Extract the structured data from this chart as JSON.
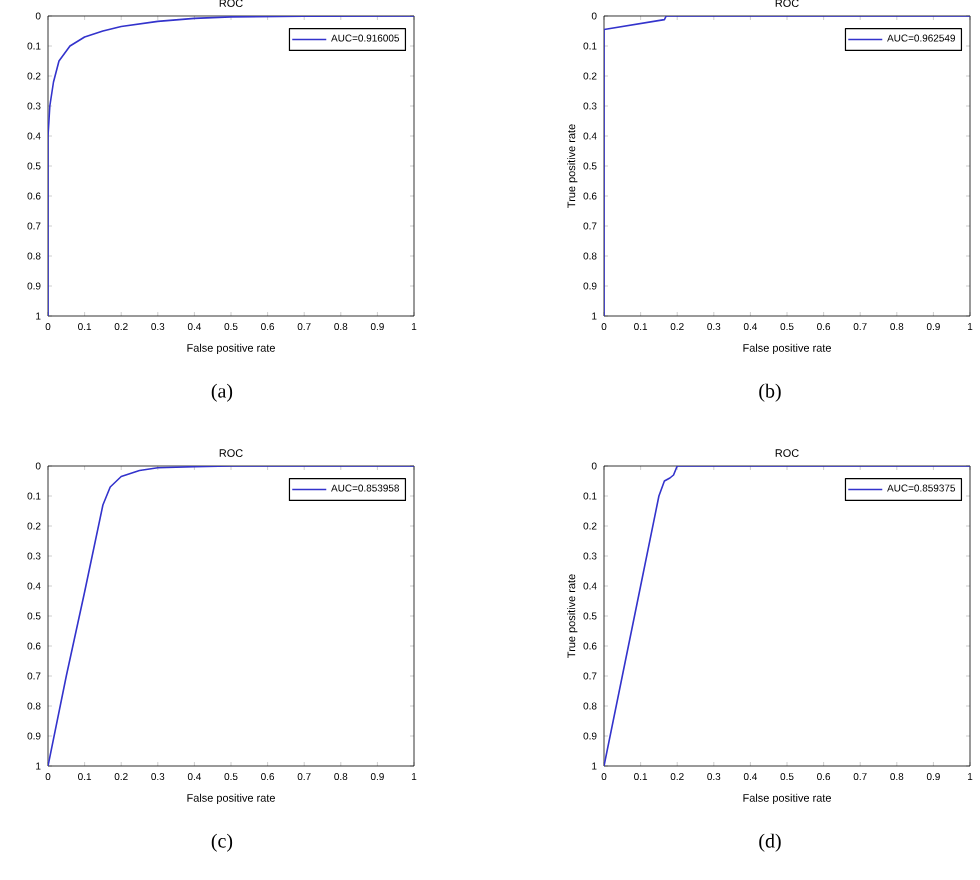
{
  "chart_data": [
    {
      "type": "line",
      "title": "ROC",
      "xlabel": "False positive rate",
      "annotations": [
        "(a)"
      ],
      "legend": "top right",
      "grid": false,
      "marker": "none",
      "line_style": "solid",
      "xlim": [
        0,
        1
      ],
      "ylim": [
        1,
        0
      ],
      "xticks": [
        0,
        0.1,
        0.2,
        0.3,
        0.4,
        0.5,
        0.6,
        0.7,
        0.8,
        0.9,
        1
      ],
      "yticks": [
        0,
        0.1,
        0.2,
        0.3,
        0.4,
        0.5,
        0.6,
        0.7,
        0.8,
        0.9,
        1
      ],
      "x": [
        0,
        0,
        0.005,
        0.015,
        0.03,
        0.06,
        0.1,
        0.15,
        0.2,
        0.3,
        0.4,
        0.5,
        0.7,
        1
      ],
      "series": [
        {
          "name": "AUC=0.916005",
          "color": "#3333cc",
          "values": [
            1,
            0.4,
            0.3,
            0.22,
            0.15,
            0.1,
            0.07,
            0.05,
            0.035,
            0.018,
            0.008,
            0.003,
            0.001,
            0
          ]
        }
      ]
    },
    {
      "type": "line",
      "title": "ROC",
      "xlabel": "False positive rate",
      "ylabel": "True positive rate",
      "annotations": [
        "(b)"
      ],
      "legend": "top right",
      "grid": false,
      "marker": "none",
      "line_style": "solid",
      "xlim": [
        0,
        1
      ],
      "ylim": [
        1,
        0
      ],
      "xticks": [
        0,
        0.1,
        0.2,
        0.3,
        0.4,
        0.5,
        0.6,
        0.7,
        0.8,
        0.9,
        1
      ],
      "yticks": [
        0,
        0.1,
        0.2,
        0.3,
        0.4,
        0.5,
        0.6,
        0.7,
        0.8,
        0.9,
        1
      ],
      "x": [
        0,
        0,
        0.165,
        0.17,
        1
      ],
      "series": [
        {
          "name": "AUC=0.962549",
          "color": "#3333cc",
          "values": [
            1,
            0.045,
            0.012,
            0,
            0
          ]
        }
      ]
    },
    {
      "type": "line",
      "title": "ROC",
      "xlabel": "False positive rate",
      "annotations": [
        "(c)"
      ],
      "legend": "top right",
      "grid": false,
      "marker": "none",
      "line_style": "solid",
      "xlim": [
        0,
        1
      ],
      "ylim": [
        1,
        0
      ],
      "xticks": [
        0,
        0.1,
        0.2,
        0.3,
        0.4,
        0.5,
        0.6,
        0.7,
        0.8,
        0.9,
        1
      ],
      "yticks": [
        0,
        0.1,
        0.2,
        0.3,
        0.4,
        0.5,
        0.6,
        0.7,
        0.8,
        0.9,
        1
      ],
      "x": [
        0,
        0.05,
        0.1,
        0.15,
        0.17,
        0.2,
        0.25,
        0.3,
        0.4,
        0.5,
        1
      ],
      "series": [
        {
          "name": "AUC=0.853958",
          "color": "#3333cc",
          "values": [
            1,
            0.7,
            0.42,
            0.13,
            0.07,
            0.035,
            0.015,
            0.006,
            0.002,
            0,
            0
          ]
        }
      ]
    },
    {
      "type": "line",
      "title": "ROC",
      "xlabel": "False positive rate",
      "ylabel": "True positive rate",
      "annotations": [
        "(d)"
      ],
      "legend": "top right",
      "grid": false,
      "marker": "none",
      "line_style": "solid",
      "xlim": [
        0,
        1
      ],
      "ylim": [
        1,
        0
      ],
      "xticks": [
        0,
        0.1,
        0.2,
        0.3,
        0.4,
        0.5,
        0.6,
        0.7,
        0.8,
        0.9,
        1
      ],
      "yticks": [
        0,
        0.1,
        0.2,
        0.3,
        0.4,
        0.5,
        0.6,
        0.7,
        0.8,
        0.9,
        1
      ],
      "x": [
        0,
        0.05,
        0.1,
        0.15,
        0.165,
        0.18,
        0.19,
        0.2,
        1
      ],
      "series": [
        {
          "name": "AUC=0.859375",
          "color": "#3333cc",
          "values": [
            1,
            0.7,
            0.4,
            0.1,
            0.05,
            0.04,
            0.03,
            0,
            0
          ]
        }
      ]
    }
  ]
}
